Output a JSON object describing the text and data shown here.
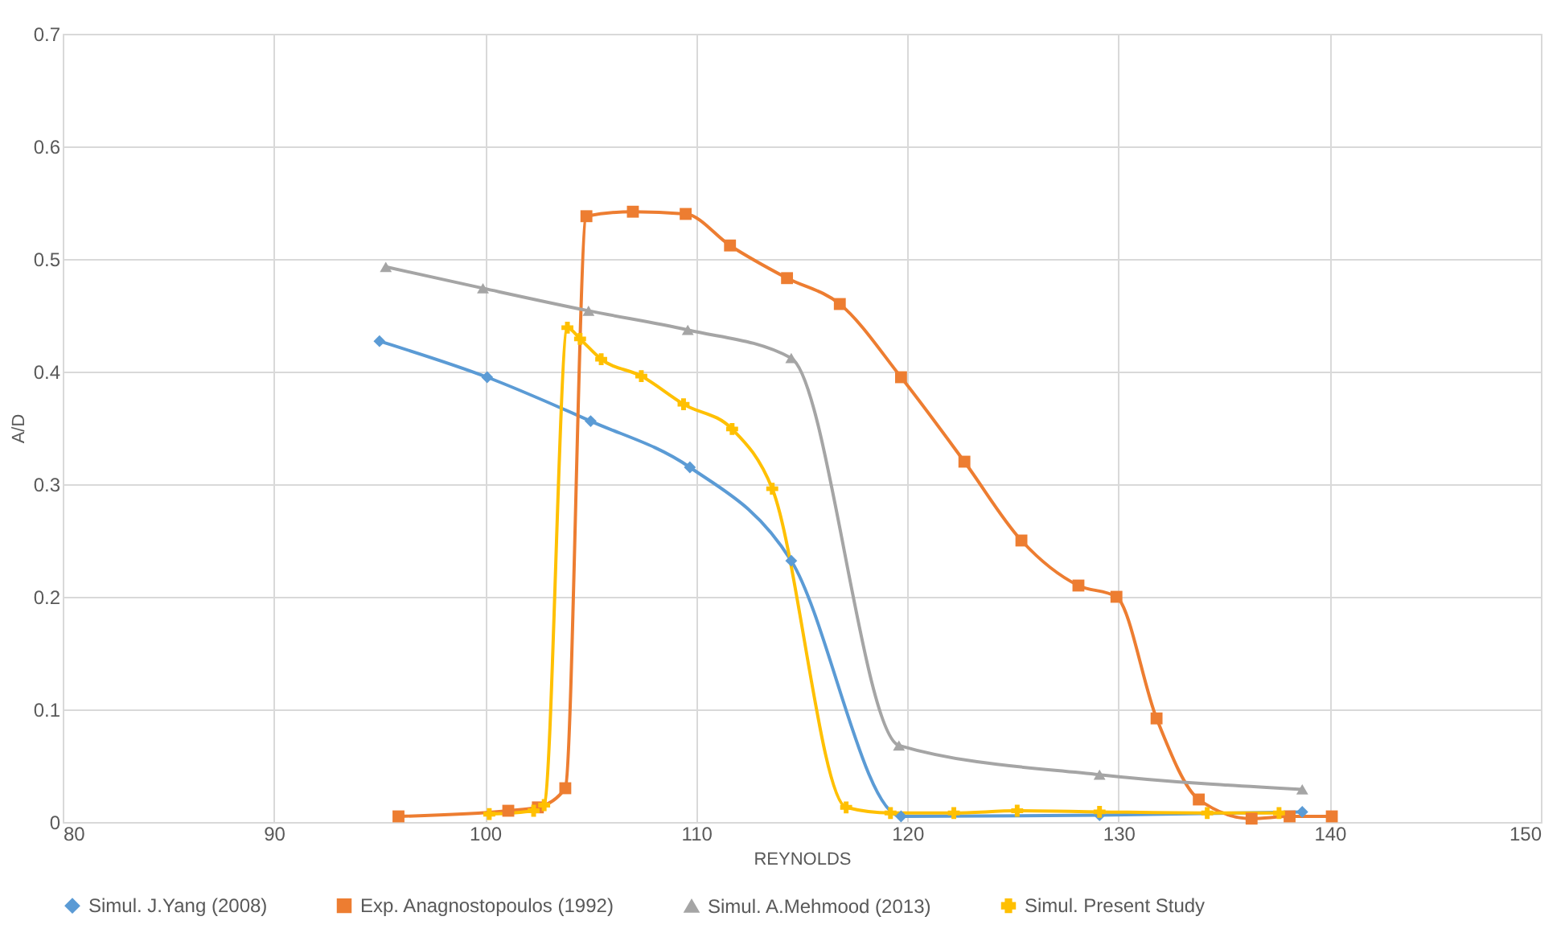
{
  "chart_data": {
    "type": "line",
    "xlabel": "REYNOLDS",
    "ylabel": "A/D",
    "xlim": [
      80,
      150
    ],
    "xticks": [
      80,
      90,
      100,
      110,
      120,
      130,
      140,
      150
    ],
    "ylim": [
      0,
      0.7
    ],
    "yticks": [
      0,
      0.1,
      0.2,
      0.3,
      0.4,
      0.5,
      0.6,
      0.7
    ],
    "grid": true,
    "legend": "bottom",
    "line_style": "solid",
    "series": [
      {
        "name": "Simul. J.Yang (2008)",
        "color": "#5b9bd5",
        "marker": "diamond",
        "x": [
          95,
          100.1,
          105,
          109.7,
          114.5,
          119.7,
          129.1,
          138.7
        ],
        "values": [
          0.427,
          0.395,
          0.356,
          0.315,
          0.232,
          0.005,
          0.006,
          0.009
        ]
      },
      {
        "name": "Exp. Anagnostopoulos (1992)",
        "color": "#ed7d31",
        "marker": "square",
        "x": [
          95.9,
          101.1,
          102.5,
          103.8,
          104.8,
          107,
          109.5,
          111.6,
          114.3,
          116.8,
          119.7,
          122.7,
          125.4,
          128.1,
          129.9,
          131.8,
          133.8,
          136.3,
          138.1,
          140.1
        ],
        "values": [
          0.005,
          0.01,
          0.013,
          0.03,
          0.538,
          0.542,
          0.54,
          0.512,
          0.483,
          0.46,
          0.395,
          0.32,
          0.25,
          0.21,
          0.2,
          0.092,
          0.02,
          0.003,
          0.005,
          0.005
        ]
      },
      {
        "name": "Simul. A.Mehmood (2013)",
        "color": "#a5a5a5",
        "marker": "triangle",
        "x": [
          95.3,
          99.9,
          104.9,
          109.6,
          114.5,
          119.6,
          129.1,
          138.7
        ],
        "values": [
          0.493,
          0.474,
          0.454,
          0.437,
          0.412,
          0.068,
          0.042,
          0.029
        ]
      },
      {
        "name": "Simul. Present Study",
        "color": "#ffc000",
        "marker": "cross",
        "x": [
          100.2,
          102.3,
          102.8,
          103.9,
          104.5,
          105.5,
          107.4,
          109.4,
          111.7,
          113.6,
          117.1,
          119.2,
          122.2,
          125.2,
          129.1,
          134.2,
          137.6
        ],
        "values": [
          0.007,
          0.01,
          0.015,
          0.439,
          0.429,
          0.411,
          0.396,
          0.371,
          0.349,
          0.296,
          0.013,
          0.008,
          0.008,
          0.01,
          0.009,
          0.008,
          0.008
        ]
      }
    ]
  }
}
